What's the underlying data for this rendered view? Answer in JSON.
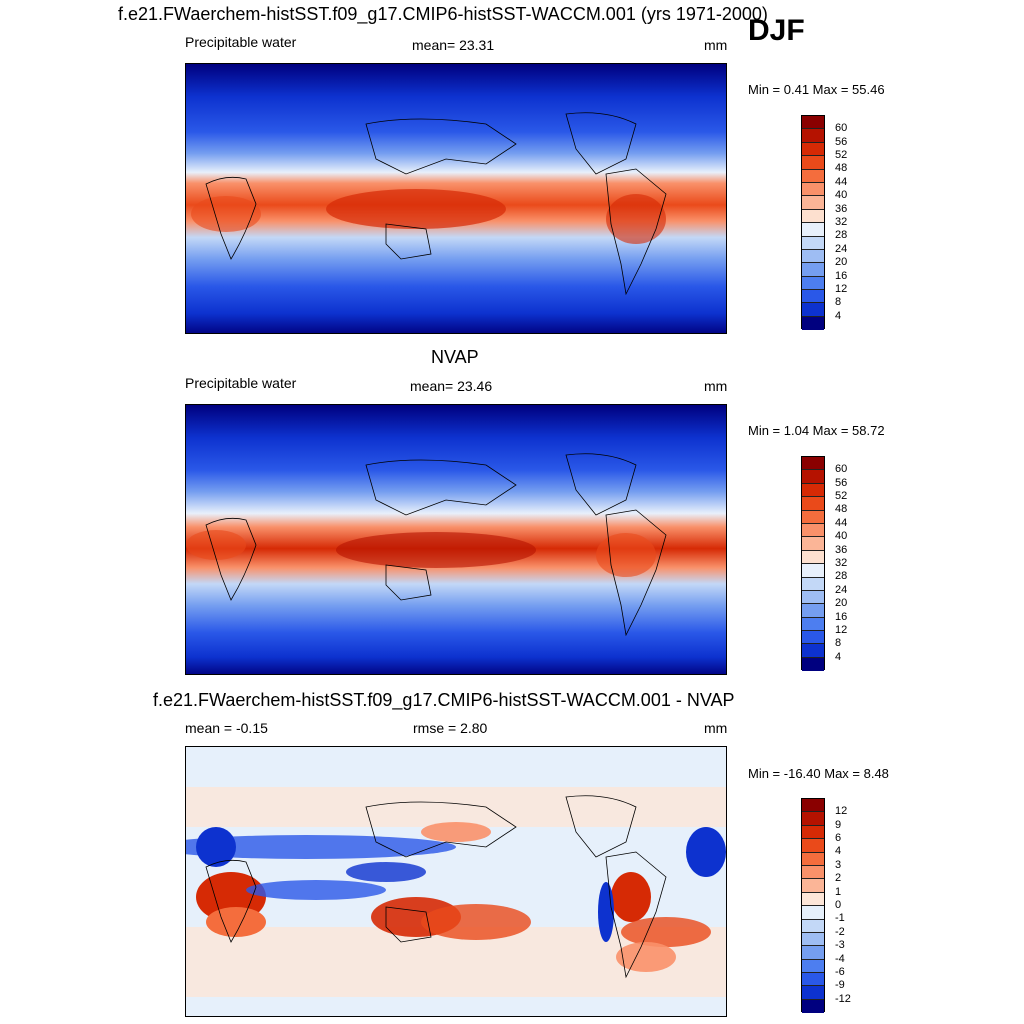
{
  "season": "DJF",
  "panels": [
    {
      "title": "f.e21.FWaerchem-histSST.f09_g17.CMIP6-histSST-WACCM.001 (yrs 1971-2000)",
      "left": "Precipitable water",
      "center": "mean=  23.31",
      "right": "mm",
      "minmax": "Min =   0.41 Max =  55.46",
      "colorbar": {
        "labels": [
          "60",
          "56",
          "52",
          "48",
          "44",
          "40",
          "36",
          "32",
          "28",
          "24",
          "20",
          "16",
          "12",
          "8",
          "4"
        ],
        "colors": [
          "#8a0000",
          "#b51200",
          "#d62a05",
          "#ea4a1a",
          "#f46d3d",
          "#f9916a",
          "#fbb597",
          "#fde0cf",
          "#e8f0fb",
          "#c3d8f7",
          "#9ebdf3",
          "#759ef0",
          "#4d7ef0",
          "#2a58e8",
          "#0d32cf",
          "#00007f"
        ]
      }
    },
    {
      "title": "NVAP",
      "left": "Precipitable water",
      "center": "mean=  23.46",
      "right": "mm",
      "minmax": "Min =   1.04 Max =  58.72",
      "colorbar": {
        "labels": [
          "60",
          "56",
          "52",
          "48",
          "44",
          "40",
          "36",
          "32",
          "28",
          "24",
          "20",
          "16",
          "12",
          "8",
          "4"
        ],
        "colors": [
          "#8a0000",
          "#b51200",
          "#d62a05",
          "#ea4a1a",
          "#f46d3d",
          "#f9916a",
          "#fbb597",
          "#fde0cf",
          "#e8f0fb",
          "#c3d8f7",
          "#9ebdf3",
          "#759ef0",
          "#4d7ef0",
          "#2a58e8",
          "#0d32cf",
          "#00007f"
        ]
      }
    },
    {
      "title": "f.e21.FWaerchem-histSST.f09_g17.CMIP6-histSST-WACCM.001 - NVAP",
      "left": "mean =  -0.15",
      "center": "rmse =   2.80",
      "right": "mm",
      "minmax": "Min = -16.40 Max =   8.48",
      "colorbar": {
        "labels": [
          "12",
          "9",
          "6",
          "4",
          "3",
          "2",
          "1",
          "0",
          "-1",
          "-2",
          "-3",
          "-4",
          "-6",
          "-9",
          "-12"
        ],
        "colors": [
          "#8a0000",
          "#b51200",
          "#d62a05",
          "#ea4a1a",
          "#f46d3d",
          "#f9916a",
          "#fbb597",
          "#fde6d8",
          "#e6f0fb",
          "#c3d8f7",
          "#9ebdf3",
          "#759ef0",
          "#4d7ef0",
          "#2a58e8",
          "#0d32cf",
          "#00007f"
        ]
      }
    }
  ]
}
